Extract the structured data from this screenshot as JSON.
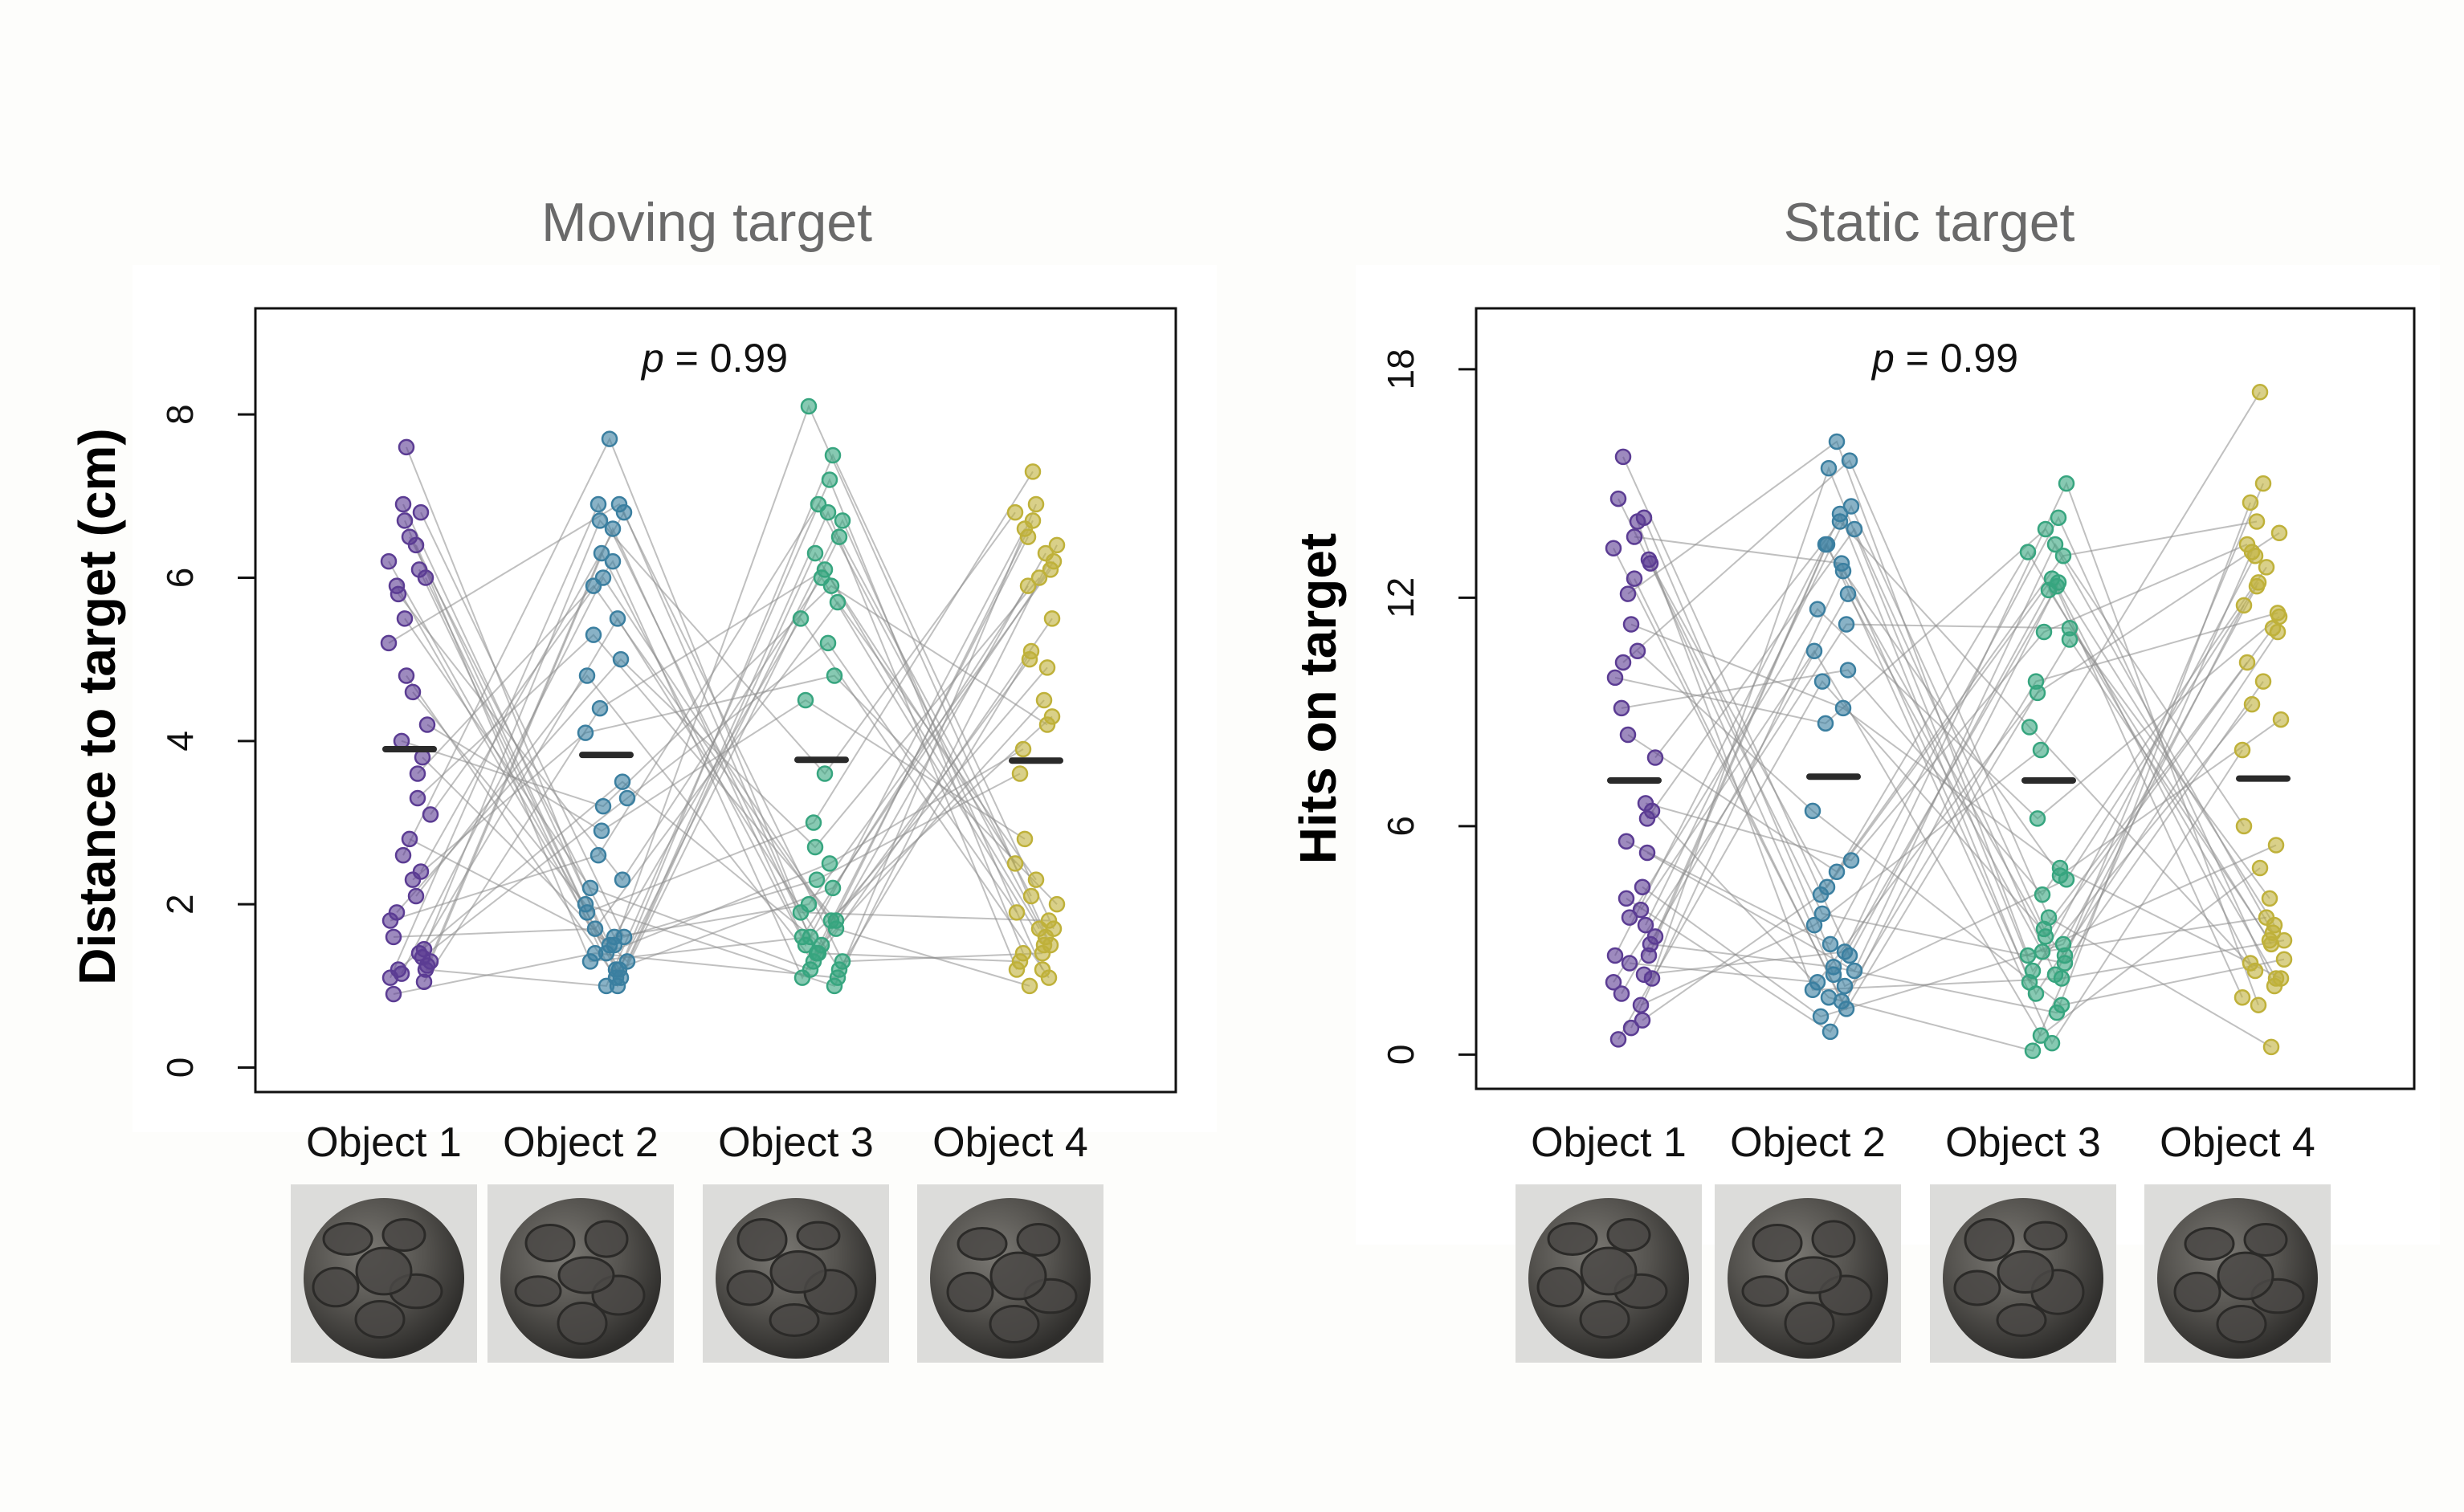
{
  "chart_data": [
    {
      "type": "scatter",
      "title": "Moving target",
      "ylabel": "Distance to target (cm)",
      "xlabel": "",
      "annotation_p": "p",
      "annotation_rest": " = 0.99",
      "ylim": [
        -0.3,
        9.3
      ],
      "yticks": [
        0,
        2,
        4,
        6,
        8
      ],
      "grid": false,
      "categories": [
        "Object 1",
        "Object 2",
        "Object 3",
        "Object 4"
      ],
      "colors": [
        "#5b3c93",
        "#3b7fa0",
        "#37a57f",
        "#bfb13a"
      ],
      "means": [
        3.9,
        3.83,
        3.77,
        3.76
      ],
      "subjects": [
        [
          1.1,
          6.9,
          1.4,
          6.3
        ],
        [
          1.2,
          1.0,
          7.2,
          1.4
        ],
        [
          1.3,
          6.6,
          1.6,
          5.9
        ],
        [
          0.9,
          1.4,
          1.1,
          6.9
        ],
        [
          6.2,
          1.2,
          6.7,
          1.2
        ],
        [
          1.25,
          6.3,
          1.5,
          6.6
        ],
        [
          6.9,
          1.5,
          5.5,
          1.1
        ],
        [
          1.4,
          5.5,
          1.2,
          5.1
        ],
        [
          5.9,
          1.1,
          6.3,
          1.7
        ],
        [
          1.15,
          6.0,
          1.8,
          4.9
        ],
        [
          6.5,
          1.6,
          2.0,
          6.1
        ],
        [
          2.1,
          4.8,
          1.3,
          6.7
        ],
        [
          5.8,
          2.3,
          6.0,
          1.5
        ],
        [
          1.35,
          3.3,
          5.2,
          1.9
        ],
        [
          6.7,
          1.3,
          1.6,
          4.3
        ],
        [
          4.6,
          2.0,
          1.0,
          6.4
        ],
        [
          2.4,
          6.8,
          1.4,
          1.3
        ],
        [
          1.05,
          4.4,
          6.1,
          2.5
        ],
        [
          7.6,
          1.2,
          2.2,
          6.2
        ],
        [
          3.6,
          5.9,
          1.7,
          1.0
        ],
        [
          1.8,
          2.6,
          6.9,
          1.6
        ],
        [
          6.0,
          1.4,
          2.5,
          3.9
        ],
        [
          3.1,
          6.2,
          1.1,
          6.5
        ],
        [
          1.6,
          1.7,
          5.7,
          2.3
        ],
        [
          5.2,
          6.9,
          1.3,
          1.4
        ],
        [
          4.2,
          2.9,
          4.5,
          2.8
        ],
        [
          2.6,
          7.7,
          1.9,
          1.8
        ],
        [
          6.1,
          1.0,
          6.5,
          2.1
        ],
        [
          1.9,
          5.0,
          2.7,
          6.0
        ],
        [
          4.0,
          3.2,
          5.9,
          4.2
        ],
        [
          2.8,
          1.5,
          8.1,
          1.5
        ],
        [
          6.4,
          1.9,
          3.0,
          7.3
        ],
        [
          1.2,
          3.5,
          1.5,
          4.5
        ],
        [
          3.8,
          1.3,
          6.8,
          1.2
        ],
        [
          5.5,
          2.2,
          1.2,
          5.5
        ],
        [
          2.3,
          4.1,
          4.8,
          2.0
        ],
        [
          6.8,
          1.6,
          2.3,
          3.6
        ],
        [
          1.45,
          6.7,
          3.6,
          6.8
        ],
        [
          4.8,
          1.1,
          7.5,
          1.7
        ],
        [
          3.3,
          5.3,
          1.8,
          5.0
        ]
      ]
    },
    {
      "type": "scatter",
      "title": "Static target",
      "ylabel": "Hits on target",
      "xlabel": "",
      "annotation_p": "p",
      "annotation_rest": " = 0.99",
      "ylim": [
        -0.9,
        19.6
      ],
      "yticks": [
        0,
        6,
        12,
        18
      ],
      "grid": false,
      "categories": [
        "Object 1",
        "Object 2",
        "Object 3",
        "Object 4"
      ],
      "colors": [
        "#5b3c93",
        "#3b7fa0",
        "#37a57f",
        "#bfb13a"
      ],
      "means": [
        7.2,
        7.3,
        7.2,
        7.25
      ],
      "subjects": [
        [
          2.6,
          13.4,
          3.1,
          11.2
        ],
        [
          12.9,
          2.1,
          12.3,
          2.4
        ],
        [
          3.1,
          14.2,
          1.9,
          13.1
        ],
        [
          0.4,
          9.8,
          2.6,
          15.0
        ],
        [
          13.3,
          1.2,
          10.9,
          3.0
        ],
        [
          2.0,
          15.4,
          2.2,
          9.2
        ],
        [
          8.4,
          4.8,
          13.2,
          2.0
        ],
        [
          14.1,
          1.8,
          4.6,
          12.4
        ],
        [
          1.6,
          12.1,
          2.7,
          3.6
        ],
        [
          5.6,
          2.9,
          14.1,
          1.8
        ],
        [
          12.5,
          1.4,
          9.8,
          11.6
        ],
        [
          3.8,
          10.6,
          0.5,
          4.9
        ],
        [
          15.7,
          2.6,
          12.2,
          2.9
        ],
        [
          6.2,
          13.8,
          2.1,
          11.8
        ],
        [
          2.4,
          1.9,
          9.5,
          13.7
        ],
        [
          10.6,
          6.4,
          1.3,
          2.5
        ],
        [
          3.4,
          14.4,
          3.3,
          10.3
        ],
        [
          13.0,
          4.4,
          12.5,
          1.5
        ],
        [
          0.7,
          12.7,
          4.7,
          8.8
        ],
        [
          4.4,
          1.0,
          2.9,
          12.3
        ],
        [
          9.9,
          8.7,
          13.8,
          3.2
        ],
        [
          2.9,
          2.3,
          1.1,
          14.5
        ],
        [
          7.8,
          14.0,
          8.6,
          2.2
        ],
        [
          14.6,
          3.7,
          2.4,
          9.8
        ],
        [
          1.9,
          11.3,
          11.2,
          4.1
        ],
        [
          6.4,
          1.5,
          0.1,
          13.2
        ],
        [
          12.1,
          16.1,
          2.6,
          5.5
        ],
        [
          2.1,
          2.7,
          15.0,
          1.3
        ],
        [
          9.1,
          10.1,
          4.2,
          12.8
        ],
        [
          4.1,
          0.6,
          12.4,
          3.4
        ],
        [
          13.6,
          12.9,
          1.6,
          11.1
        ],
        [
          1.3,
          3.4,
          8.0,
          17.4
        ],
        [
          10.3,
          15.6,
          3.6,
          0.2
        ],
        [
          5.3,
          2.2,
          13.4,
          6.0
        ],
        [
          3.6,
          11.7,
          6.2,
          11.5
        ],
        [
          14.0,
          1.7,
          2.0,
          3.0
        ],
        [
          6.6,
          5.1,
          11.1,
          13.4
        ],
        [
          2.6,
          13.4,
          0.3,
          8.0
        ],
        [
          11.3,
          9.1,
          4.9,
          2.0
        ],
        [
          0.9,
          4.2,
          13.1,
          14.0
        ]
      ]
    }
  ]
}
